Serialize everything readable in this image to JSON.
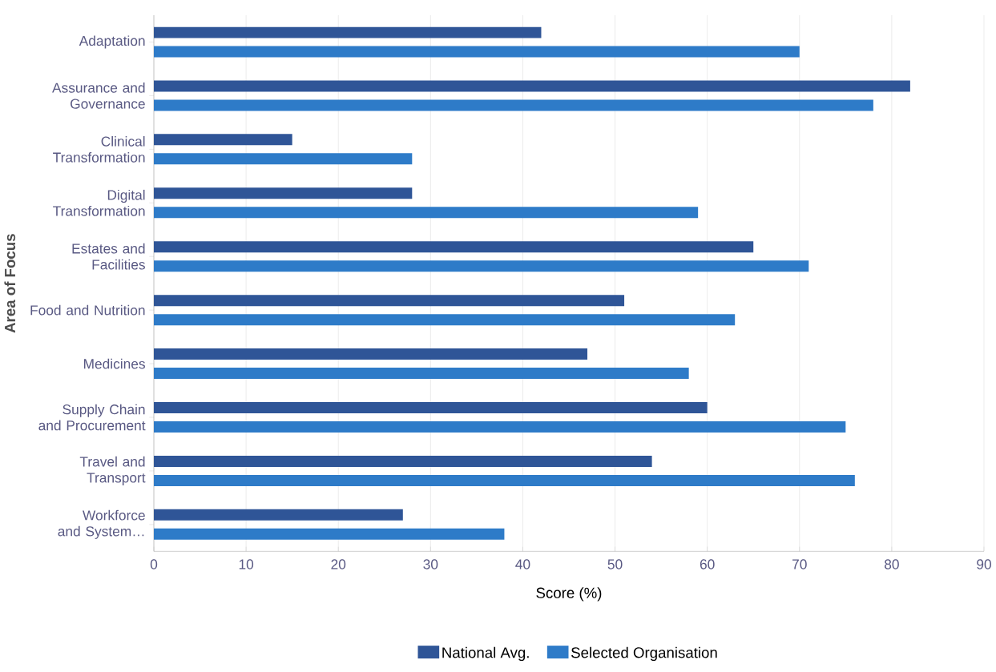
{
  "chart_data": {
    "type": "bar",
    "orientation": "horizontal",
    "xlabel": "Score (%)",
    "ylabel": "Area of Focus",
    "categories": [
      "Adaptation",
      "Assurance and Governance",
      "Clinical Transformation",
      "Digital Transformation",
      "Estates and Facilities",
      "Food and Nutrition",
      "Medicines",
      "Supply Chain and Procurement",
      "Travel and Transport",
      "Workforce and System…"
    ],
    "series": [
      {
        "name": "National Avg.",
        "color": "#2f5597",
        "values": [
          42,
          82,
          15,
          28,
          65,
          51,
          47,
          60,
          54,
          27
        ]
      },
      {
        "name": "Selected Organisation",
        "color": "#2e7bc8",
        "values": [
          70,
          78,
          28,
          59,
          71,
          63,
          58,
          75,
          76,
          38
        ]
      }
    ],
    "xlim": [
      0,
      90
    ],
    "xticks": [
      0,
      10,
      20,
      30,
      40,
      50,
      60,
      70,
      80,
      90
    ],
    "grid": "x",
    "legend": "bottom"
  }
}
